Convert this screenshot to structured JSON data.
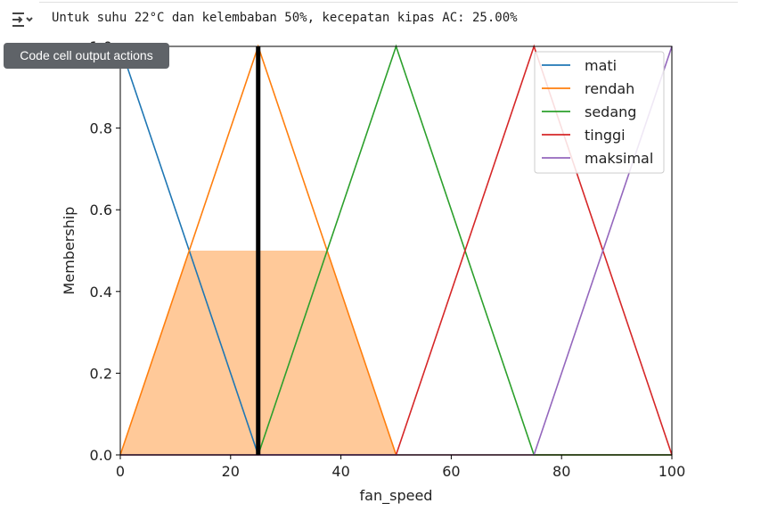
{
  "cell_output": {
    "text": "Untuk suhu 22°C dan kelembaban 50%, kecepatan kipas AC: 25.00%",
    "icon": "output-toggle-icon"
  },
  "tooltip": {
    "text": "Code cell output actions"
  },
  "chart_data": {
    "type": "line",
    "title": "",
    "xlabel": "fan_speed",
    "ylabel": "Membership",
    "xlim": [
      0,
      100
    ],
    "ylim": [
      0,
      1.0
    ],
    "xticks": [
      0,
      20,
      40,
      60,
      80,
      100
    ],
    "yticks": [
      0.0,
      0.2,
      0.4,
      0.6,
      0.8,
      1.0
    ],
    "xtick_labels": [
      "0",
      "20",
      "40",
      "60",
      "80",
      "100"
    ],
    "ytick_labels": [
      "0.0",
      "0.2",
      "0.4",
      "0.6",
      "0.8",
      "1.0"
    ],
    "grid": false,
    "legend_position": "top-right",
    "series": [
      {
        "name": "mati",
        "color": "#1f77b4",
        "x": [
          0,
          25,
          100
        ],
        "y": [
          1.0,
          0.0,
          0.0
        ]
      },
      {
        "name": "rendah",
        "color": "#ff7f0e",
        "x": [
          0,
          25,
          50,
          100
        ],
        "y": [
          0.0,
          1.0,
          0.0,
          0.0
        ]
      },
      {
        "name": "sedang",
        "color": "#2ca02c",
        "x": [
          0,
          25,
          50,
          75,
          100
        ],
        "y": [
          0.0,
          0.0,
          1.0,
          0.0,
          0.0
        ]
      },
      {
        "name": "tinggi",
        "color": "#d62728",
        "x": [
          0,
          50,
          75,
          100
        ],
        "y": [
          0.0,
          0.0,
          1.0,
          0.0
        ]
      },
      {
        "name": "maksimal",
        "color": "#9467bd",
        "x": [
          0,
          75,
          100
        ],
        "y": [
          0.0,
          0.0,
          1.0
        ]
      }
    ],
    "filled_area": {
      "color": "#ffc999",
      "x": [
        0,
        12.5,
        37.5,
        50
      ],
      "y": [
        0.0,
        0.5,
        0.5,
        0.0
      ]
    },
    "vertical_line": {
      "x": 25,
      "y": [
        0.0,
        1.0
      ],
      "color": "#000000"
    }
  }
}
